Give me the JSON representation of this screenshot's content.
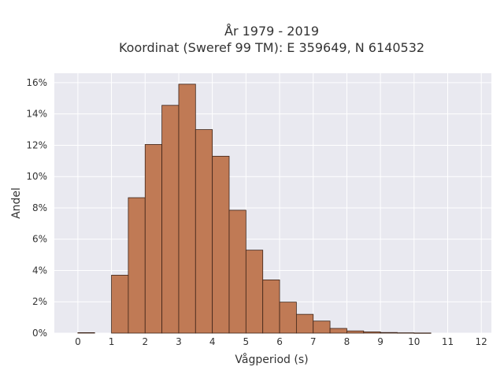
{
  "chart_data": {
    "type": "bar",
    "title_lines": [
      "År 1979 - 2019",
      "Koordinat (Sweref 99 TM): E 359649, N 6140532"
    ],
    "xlabel": "Vågperiod (s)",
    "ylabel": "Andel",
    "xlim": [
      -0.7,
      12.3
    ],
    "ylim": [
      0,
      16.6
    ],
    "x_ticks": [
      0,
      1,
      2,
      3,
      4,
      5,
      6,
      7,
      8,
      9,
      10,
      11,
      12
    ],
    "x_tick_labels": [
      "0",
      "1",
      "2",
      "3",
      "4",
      "5",
      "6",
      "7",
      "8",
      "9",
      "10",
      "11",
      "12"
    ],
    "y_ticks": [
      0,
      2,
      4,
      6,
      8,
      10,
      12,
      14,
      16
    ],
    "y_tick_labels": [
      "0%",
      "2%",
      "4%",
      "6%",
      "8%",
      "10%",
      "12%",
      "14%",
      "16%"
    ],
    "bin_width": 0.5,
    "bins_start": [
      0,
      1,
      1.5,
      2,
      2.5,
      3,
      3.5,
      4,
      4.5,
      5,
      5.5,
      6,
      6.5,
      7,
      7.5,
      8,
      8.5,
      9,
      9.5,
      10
    ],
    "values": [
      0.03,
      3.7,
      8.65,
      12.05,
      14.55,
      15.9,
      13.0,
      11.3,
      7.85,
      5.3,
      3.4,
      1.98,
      1.2,
      0.77,
      0.3,
      0.14,
      0.08,
      0.04,
      0.02,
      0.01
    ],
    "grid": true,
    "colors": {
      "bar": "#c07a55",
      "edge": "#3d2418",
      "background": "#e9e9f0"
    }
  }
}
